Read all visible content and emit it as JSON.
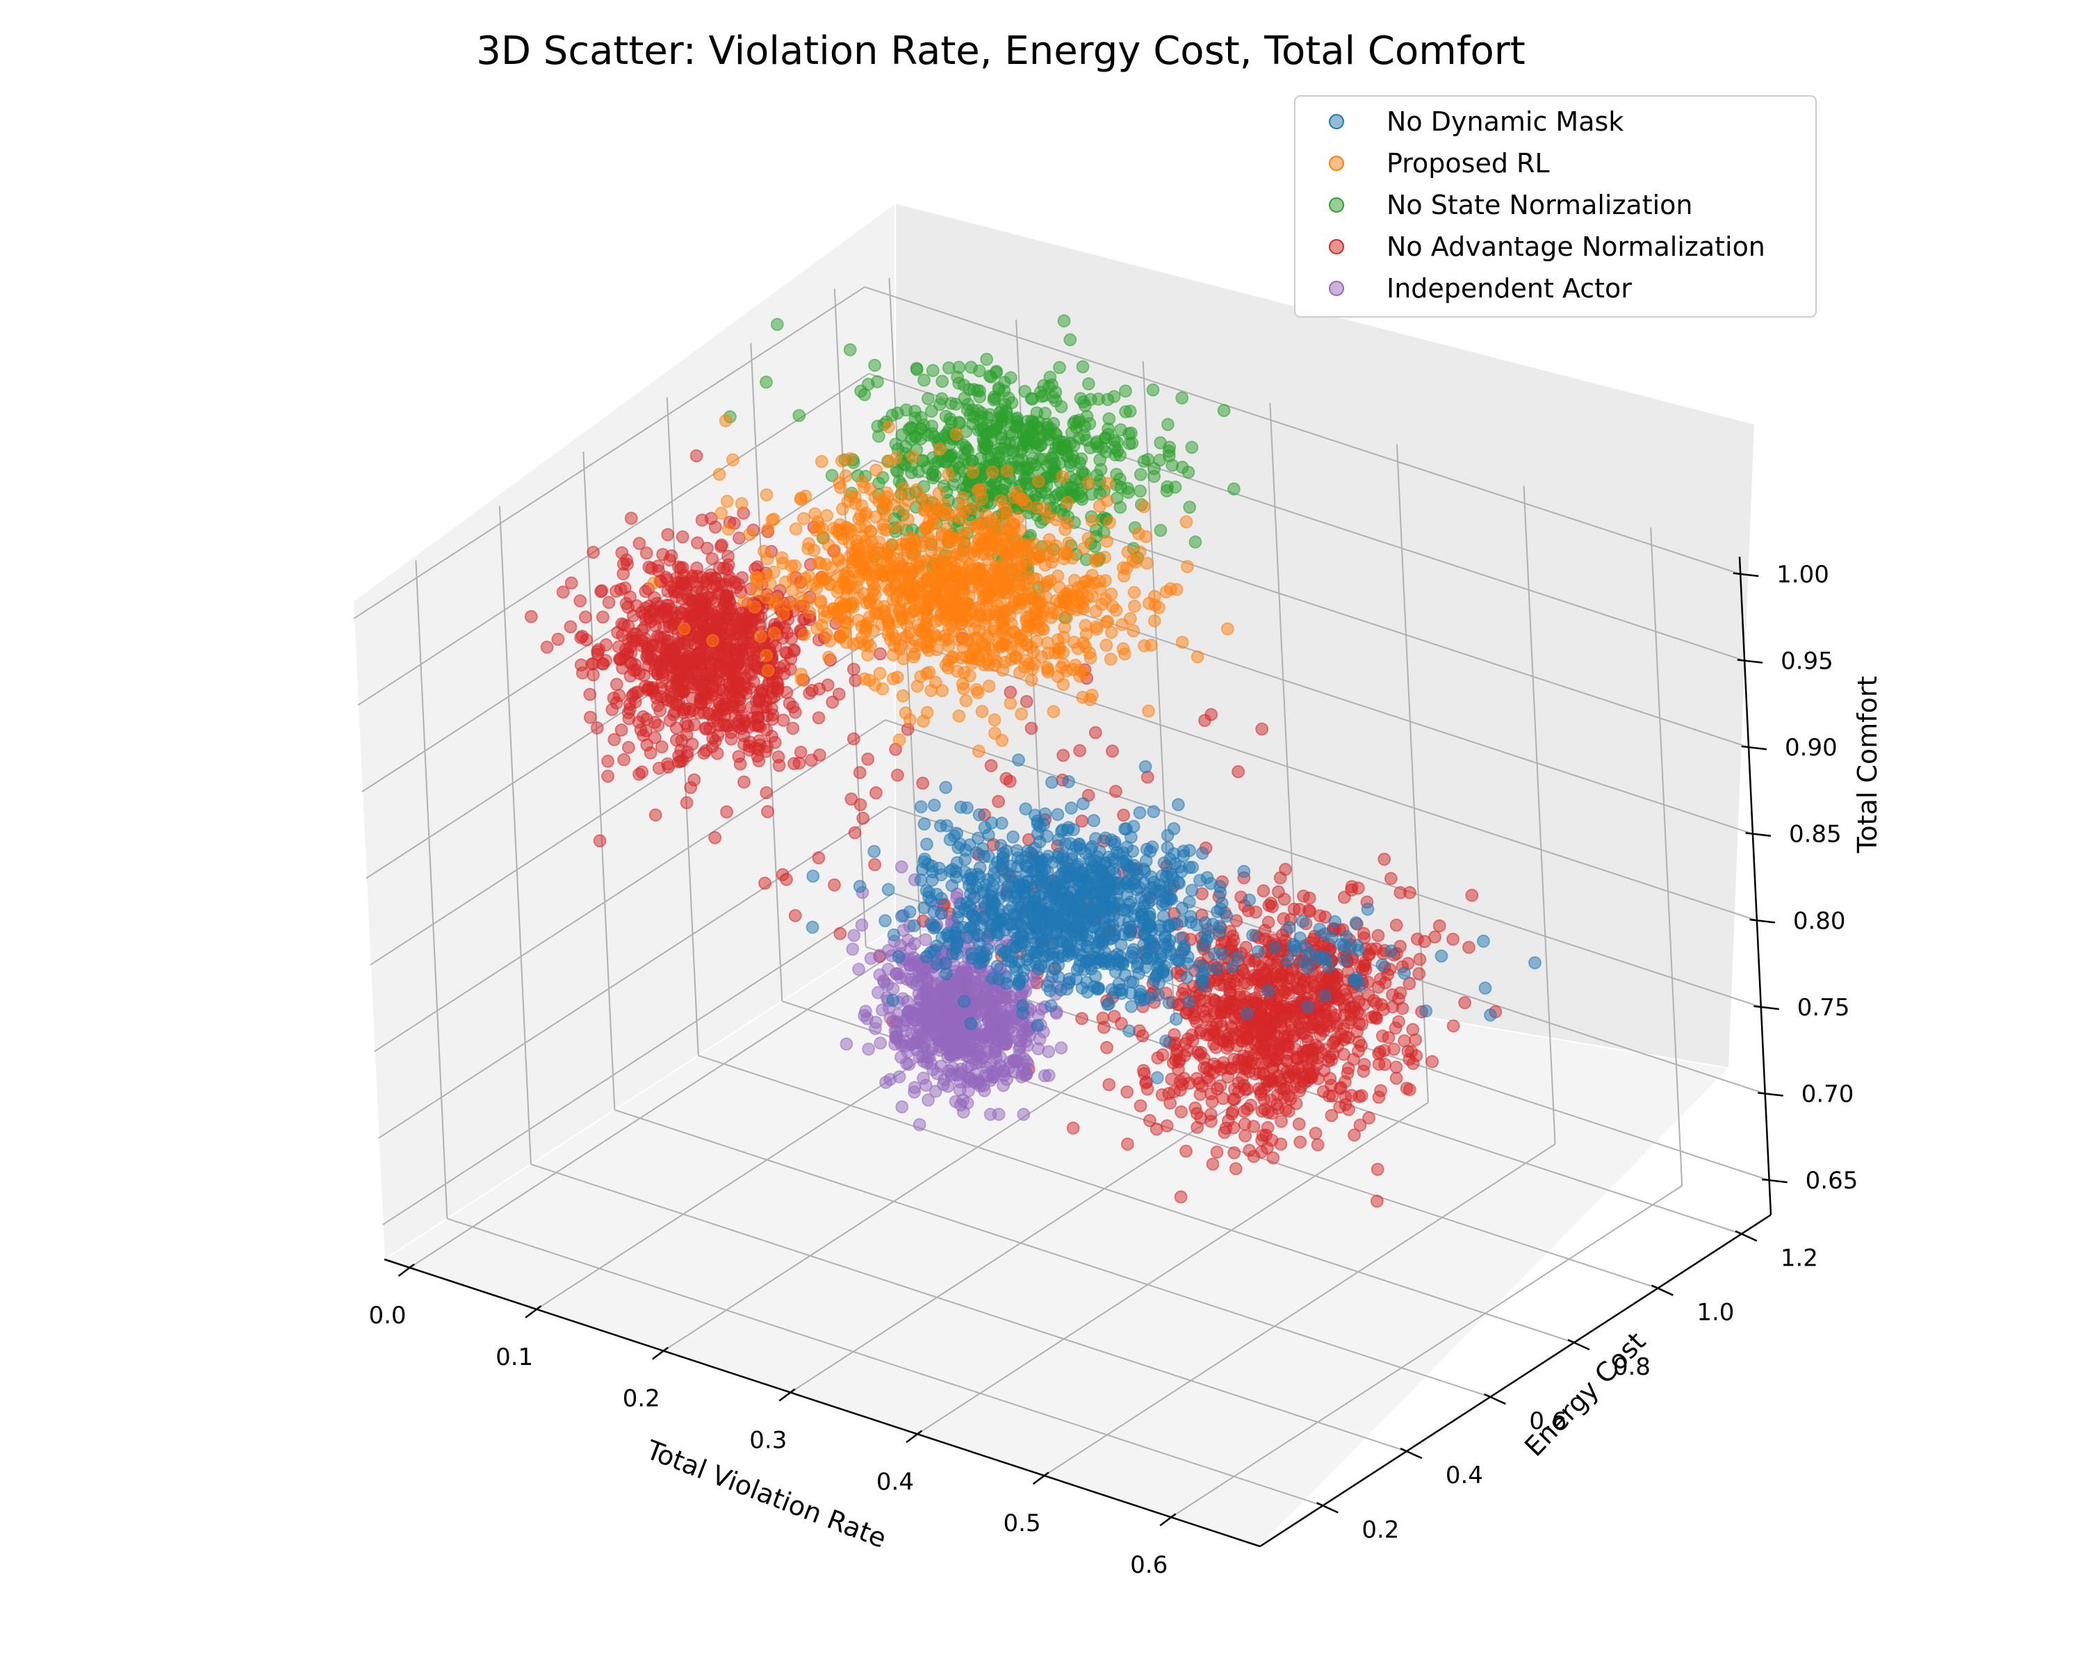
{
  "chart_data": {
    "type": "scatter",
    "subtype": "3d",
    "title": "3D Scatter: Violation Rate, Energy Cost, Total Comfort",
    "xlabel": "Total Violation Rate",
    "ylabel": "Energy Cost",
    "zlabel": "Total Comfort",
    "xlim": [
      -0.02,
      0.67
    ],
    "ylim": [
      0.05,
      1.27
    ],
    "zlim": [
      0.63,
      1.01
    ],
    "x_ticks": [
      "0.0",
      "0.1",
      "0.2",
      "0.3",
      "0.4",
      "0.5",
      "0.6"
    ],
    "y_ticks": [
      "0.2",
      "0.4",
      "0.6",
      "0.8",
      "1.0",
      "1.2"
    ],
    "z_ticks": [
      "0.65",
      "0.70",
      "0.75",
      "0.80",
      "0.85",
      "0.90",
      "0.95",
      "1.00"
    ],
    "grid": true,
    "legend_position": "top-right",
    "series": [
      {
        "name": "No Dynamic Mask",
        "color": "#1f77b4",
        "clusters": [
          {
            "center": [
              0.38,
              0.52,
              0.855
            ],
            "spread": [
              0.05,
              0.08,
              0.018
            ],
            "count": 1000
          },
          {
            "center": [
              0.55,
              0.62,
              0.85
            ],
            "spread": [
              0.025,
              0.05,
              0.01
            ],
            "count": 40
          }
        ],
        "tail": [
          [
            0.6,
            0.65,
            0.85
          ],
          [
            0.62,
            0.68,
            0.86
          ],
          [
            0.64,
            0.72,
            0.84
          ],
          [
            0.65,
            0.7,
            0.83
          ],
          [
            0.63,
            0.75,
            0.86
          ],
          [
            0.66,
            0.78,
            0.85
          ]
        ]
      },
      {
        "name": "Proposed RL",
        "color": "#ff7f0e",
        "clusters": [
          {
            "center": [
              0.2,
              0.8,
              0.955
            ],
            "spread": [
              0.06,
              0.1,
              0.02
            ],
            "count": 1100
          }
        ]
      },
      {
        "name": "No State Normalization",
        "color": "#2ca02c",
        "clusters": [
          {
            "center": [
              0.18,
              1.02,
              0.985
            ],
            "spread": [
              0.05,
              0.09,
              0.016
            ],
            "count": 650
          }
        ]
      },
      {
        "name": "No Advantage Normalization",
        "color": "#d62728",
        "clusters": [
          {
            "center": [
              0.1,
              0.52,
              0.935
            ],
            "spread": [
              0.035,
              0.07,
              0.025
            ],
            "count": 950
          },
          {
            "center": [
              0.5,
              0.65,
              0.8
            ],
            "spread": [
              0.035,
              0.11,
              0.025
            ],
            "count": 950
          },
          {
            "center": [
              0.3,
              0.58,
              0.86
            ],
            "spread": [
              0.1,
              0.12,
              0.05
            ],
            "count": 120
          }
        ]
      },
      {
        "name": "Independent Actor",
        "color": "#9467bd",
        "clusters": [
          {
            "center": [
              0.33,
              0.4,
              0.8
            ],
            "spread": [
              0.028,
              0.05,
              0.02
            ],
            "count": 750
          }
        ]
      }
    ]
  }
}
